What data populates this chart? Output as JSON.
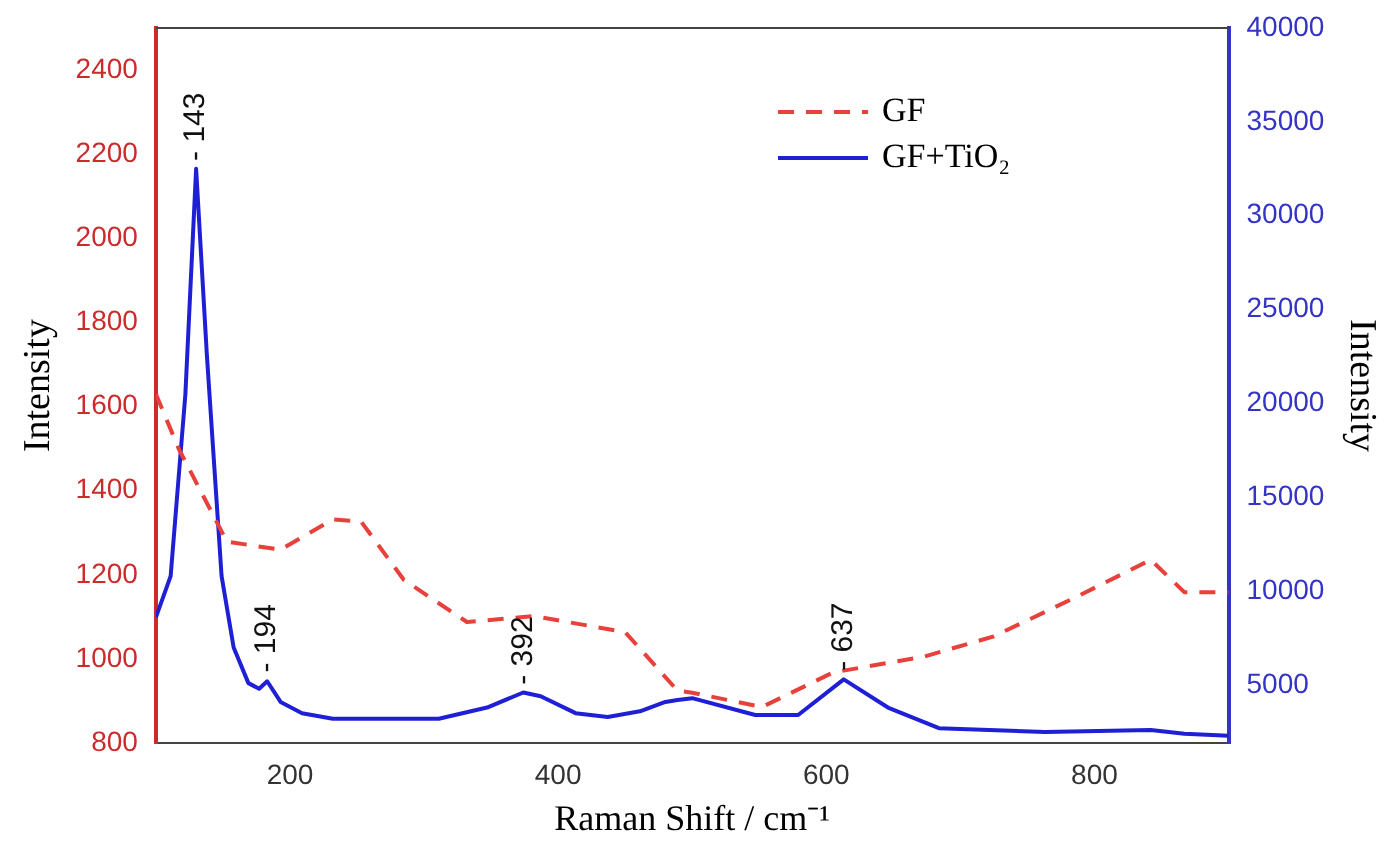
{
  "chart_data": {
    "type": "line",
    "xlabel": "Raman Shift / cm⁻¹",
    "ylabel": "Intensity",
    "y2label": "Intensity",
    "xlim": [
      100,
      900
    ],
    "xticks": [
      200,
      400,
      600,
      800
    ],
    "ylim": [
      800,
      2500
    ],
    "yticks": [
      800,
      1000,
      1200,
      1400,
      1600,
      1800,
      2000,
      2200,
      2400
    ],
    "y2lim": [
      1900,
      40000
    ],
    "y2ticks": [
      5000,
      10000,
      15000,
      20000,
      25000,
      30000,
      35000,
      40000
    ],
    "legend": "top right",
    "grid": false,
    "marker": "none",
    "series": [
      {
        "name": "GF",
        "color": "#e8403a",
        "line_style": "dashed",
        "x": [
          100,
          117,
          153,
          193,
          232,
          253,
          285,
          332,
          382,
          450,
          489,
          500,
          552,
          605,
          673,
          725,
          788,
          842,
          867,
          900
        ],
        "values": [
          1630,
          1500,
          1279,
          1260,
          1332,
          1327,
          1188,
          1088,
          1102,
          1064,
          925,
          920,
          886,
          968,
          1006,
          1054,
          1150,
          1236,
          1159,
          1159
        ]
      },
      {
        "name": "GF+TiO₂",
        "color": "#1f1fd6",
        "line_style": "solid",
        "axis": "y2",
        "x": [
          100,
          111,
          122,
          130,
          138,
          149,
          158,
          169,
          177,
          183,
          193,
          209,
          232,
          311,
          347,
          374,
          387,
          413,
          437,
          461,
          480,
          489,
          500,
          547,
          579,
          613,
          646,
          684,
          763,
          842,
          867,
          900
        ],
        "values": [
          8600,
          10800,
          20500,
          32500,
          22600,
          10800,
          7000,
          5100,
          4800,
          5200,
          4100,
          3500,
          3200,
          3200,
          3800,
          4600,
          4400,
          3500,
          3300,
          3600,
          4100,
          4200,
          4300,
          3400,
          3400,
          5300,
          3800,
          2700,
          2500,
          2600,
          2400,
          2300
        ]
      }
    ],
    "annotations": [
      {
        "text": "- 143",
        "x": 130,
        "y": 2165
      },
      {
        "text": "- 194",
        "x": 183,
        "y": 949
      },
      {
        "text": "- 392",
        "x": 374,
        "y": 920
      },
      {
        "text": "- 637",
        "x": 613,
        "y": 953
      }
    ]
  }
}
